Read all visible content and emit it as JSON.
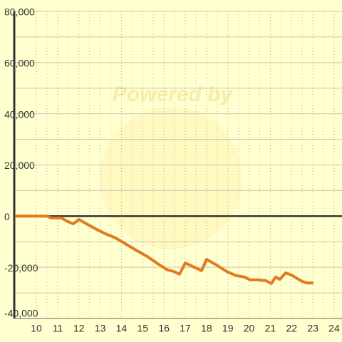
{
  "chart_data": {
    "type": "line",
    "watermark": "Powered by",
    "x": [
      9.0,
      10.5,
      10.7,
      11.17,
      11.47,
      11.74,
      12.0,
      12.4,
      12.88,
      13.25,
      13.72,
      14.22,
      14.69,
      15.22,
      15.69,
      16.16,
      16.46,
      16.73,
      17.0,
      17.4,
      17.77,
      18.0,
      18.47,
      18.94,
      19.41,
      19.78,
      20.05,
      20.42,
      20.78,
      21.05,
      21.25,
      21.45,
      21.72,
      21.99,
      22.49,
      22.73,
      23.03
    ],
    "series": [
      {
        "color": "#e07b20",
        "values": [
          0,
          0,
          -700,
          -700,
          -2100,
          -3000,
          -1300,
          -3200,
          -5400,
          -6900,
          -8500,
          -11000,
          -13300,
          -15800,
          -18500,
          -21000,
          -21600,
          -22700,
          -18300,
          -19900,
          -21300,
          -16900,
          -19100,
          -21600,
          -23300,
          -23800,
          -24900,
          -24900,
          -25200,
          -26300,
          -23800,
          -24700,
          -22200,
          -23000,
          -25500,
          -26100,
          -26100
        ]
      }
    ],
    "xlim": [
      8.96,
      24.37
    ],
    "xticks": [
      10,
      11,
      12,
      13,
      14,
      15,
      16,
      17,
      18,
      19,
      20,
      21,
      22,
      23,
      24
    ],
    "ylim": [
      -40000,
      80000
    ],
    "yticks": [
      {
        "value": -40000,
        "label": "-40,000"
      },
      {
        "value": -20000,
        "label": "-20,000"
      },
      0,
      {
        "value": 20000,
        "label": "20,000"
      },
      {
        "value": 40000,
        "label": "40,000"
      },
      {
        "value": 60000,
        "label": "60,000"
      },
      {
        "value": 80000,
        "label": "80,000"
      }
    ],
    "grid": true
  }
}
